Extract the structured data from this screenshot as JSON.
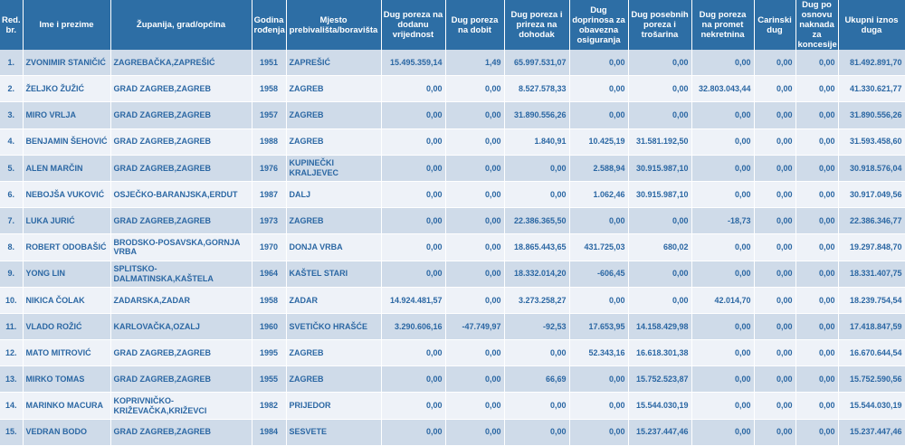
{
  "headers": [
    "Red. br.",
    "Ime i prezime",
    "Županija, grad/općina",
    "Godina rođenja",
    "Mjesto prebivališta/boravišta",
    "Dug poreza na dodanu vrijednost",
    "Dug poreza na dobit",
    "Dug poreza i prireza na dohodak",
    "Dug doprinosa za obavezna osiguranja",
    "Dug posebnih poreza i trošarina",
    "Dug poreza na promet nekretnina",
    "Carinski dug",
    "Dug po osnovu naknada za koncesije",
    "Ukupni iznos duga"
  ],
  "rows": [
    [
      "1.",
      "ZVONIMIR STANIČIĆ",
      "ZAGREBAČKA,ZAPREŠIĆ",
      "1951",
      "ZAPREŠIĆ",
      "15.495.359,14",
      "1,49",
      "65.997.531,07",
      "0,00",
      "0,00",
      "0,00",
      "0,00",
      "0,00",
      "81.492.891,70"
    ],
    [
      "2.",
      "ŽELJKO ŽUŽIĆ",
      "GRAD ZAGREB,ZAGREB",
      "1958",
      "ZAGREB",
      "0,00",
      "0,00",
      "8.527.578,33",
      "0,00",
      "0,00",
      "32.803.043,44",
      "0,00",
      "0,00",
      "41.330.621,77"
    ],
    [
      "3.",
      "MIRO VRLJA",
      "GRAD ZAGREB,ZAGREB",
      "1957",
      "ZAGREB",
      "0,00",
      "0,00",
      "31.890.556,26",
      "0,00",
      "0,00",
      "0,00",
      "0,00",
      "0,00",
      "31.890.556,26"
    ],
    [
      "4.",
      "BENJAMIN ŠEHOVIĆ",
      "GRAD ZAGREB,ZAGREB",
      "1988",
      "ZAGREB",
      "0,00",
      "0,00",
      "1.840,91",
      "10.425,19",
      "31.581.192,50",
      "0,00",
      "0,00",
      "0,00",
      "31.593.458,60"
    ],
    [
      "5.",
      "ALEN MARČIN",
      "GRAD ZAGREB,ZAGREB",
      "1976",
      "KUPINEČKI KRALJEVEC",
      "0,00",
      "0,00",
      "0,00",
      "2.588,94",
      "30.915.987,10",
      "0,00",
      "0,00",
      "0,00",
      "30.918.576,04"
    ],
    [
      "6.",
      "NEBOJŠA VUKOVIĆ",
      "OSJEČKO-BARANJSKA,ERDUT",
      "1987",
      "DALJ",
      "0,00",
      "0,00",
      "0,00",
      "1.062,46",
      "30.915.987,10",
      "0,00",
      "0,00",
      "0,00",
      "30.917.049,56"
    ],
    [
      "7.",
      "LUKA JURIĆ",
      "GRAD ZAGREB,ZAGREB",
      "1973",
      "ZAGREB",
      "0,00",
      "0,00",
      "22.386.365,50",
      "0,00",
      "0,00",
      "-18,73",
      "0,00",
      "0,00",
      "22.386.346,77"
    ],
    [
      "8.",
      "ROBERT ODOBAŠIĆ",
      "BRODSKO-POSAVSKA,GORNJA VRBA",
      "1970",
      "DONJA VRBA",
      "0,00",
      "0,00",
      "18.865.443,65",
      "431.725,03",
      "680,02",
      "0,00",
      "0,00",
      "0,00",
      "19.297.848,70"
    ],
    [
      "9.",
      "YONG LIN",
      "SPLITSKO-DALMATINSKA,KAŠTELA",
      "1964",
      "KAŠTEL STARI",
      "0,00",
      "0,00",
      "18.332.014,20",
      "-606,45",
      "0,00",
      "0,00",
      "0,00",
      "0,00",
      "18.331.407,75"
    ],
    [
      "10.",
      "NIKICA ČOLAK",
      "ZADARSKA,ZADAR",
      "1958",
      "ZADAR",
      "14.924.481,57",
      "0,00",
      "3.273.258,27",
      "0,00",
      "0,00",
      "42.014,70",
      "0,00",
      "0,00",
      "18.239.754,54"
    ],
    [
      "11.",
      "VLADO ROŽIĆ",
      "KARLOVAČKA,OZALJ",
      "1960",
      "SVETIČKO HRAŠĆE",
      "3.290.606,16",
      "-47.749,97",
      "-92,53",
      "17.653,95",
      "14.158.429,98",
      "0,00",
      "0,00",
      "0,00",
      "17.418.847,59"
    ],
    [
      "12.",
      "MATO MITROVIĆ",
      "GRAD ZAGREB,ZAGREB",
      "1995",
      "ZAGREB",
      "0,00",
      "0,00",
      "0,00",
      "52.343,16",
      "16.618.301,38",
      "0,00",
      "0,00",
      "0,00",
      "16.670.644,54"
    ],
    [
      "13.",
      "MIRKO TOMAS",
      "GRAD ZAGREB,ZAGREB",
      "1955",
      "ZAGREB",
      "0,00",
      "0,00",
      "66,69",
      "0,00",
      "15.752.523,87",
      "0,00",
      "0,00",
      "0,00",
      "15.752.590,56"
    ],
    [
      "14.",
      "MARINKO MACURA",
      "KOPRIVNIČKO-KRIŽEVAČKA,KRIŽEVCI",
      "1982",
      "PRIJEDOR",
      "0,00",
      "0,00",
      "0,00",
      "0,00",
      "15.544.030,19",
      "0,00",
      "0,00",
      "0,00",
      "15.544.030,19"
    ],
    [
      "15.",
      "VEDRAN BODO",
      "GRAD ZAGREB,ZAGREB",
      "1984",
      "SESVETE",
      "0,00",
      "0,00",
      "0,00",
      "0,00",
      "15.237.447,46",
      "0,00",
      "0,00",
      "0,00",
      "15.237.447,46"
    ]
  ]
}
